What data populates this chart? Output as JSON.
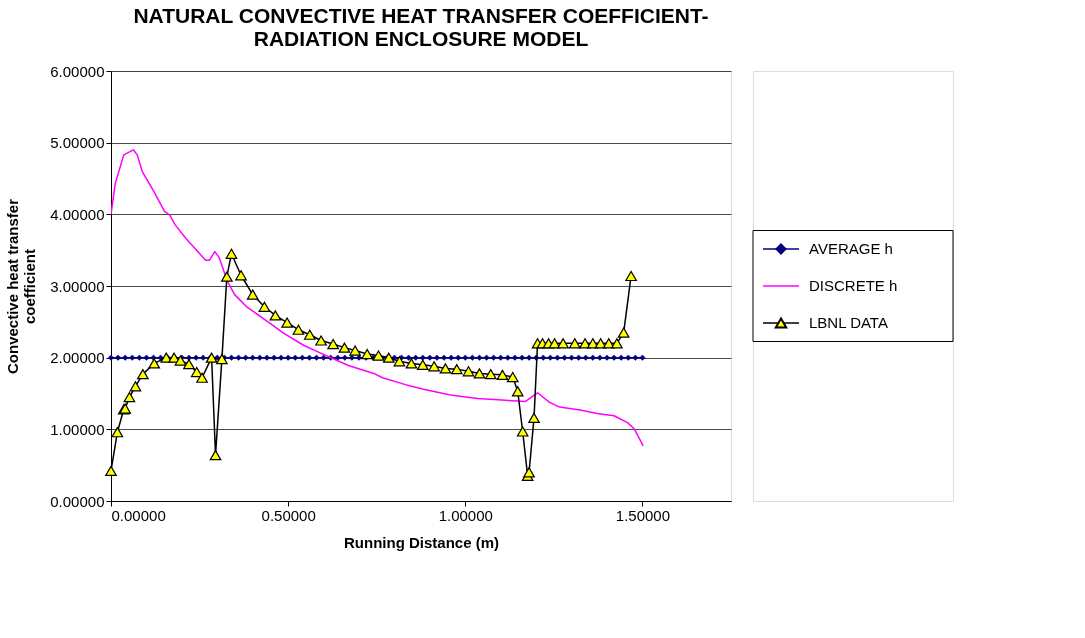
{
  "chart_data": {
    "type": "line",
    "title": "NATURAL CONVECTIVE HEAT TRANSFER COEFFICIENT-\nRADIATION ENCLOSURE MODEL",
    "xlabel": "Running Distance (m)",
    "ylabel": "Convective heat transfer coefficient",
    "xlim": [
      0,
      1.75
    ],
    "xticks": [
      {
        "value": 0,
        "label": "0.00000"
      },
      {
        "value": 0.5,
        "label": "0.50000"
      },
      {
        "value": 1,
        "label": "1.00000"
      },
      {
        "value": 1.5,
        "label": "1.50000"
      }
    ],
    "ylim": [
      0,
      6
    ],
    "yticks": [
      {
        "value": 0,
        "label": "0.00000"
      },
      {
        "value": 1,
        "label": "1.00000"
      },
      {
        "value": 2,
        "label": "2.00000"
      },
      {
        "value": 3,
        "label": "3.00000"
      },
      {
        "value": 4,
        "label": "4.00000"
      },
      {
        "value": 5,
        "label": "5.00000"
      },
      {
        "value": 6,
        "label": "6.00000"
      }
    ],
    "grid": "y",
    "legend": "right",
    "series": [
      {
        "name": "AVERAGE h",
        "color": "#000080",
        "marker": "diamond",
        "x": [
          0,
          0.02,
          0.04,
          0.06,
          0.08,
          0.1,
          0.12,
          0.14,
          0.16,
          0.18,
          0.2,
          0.22,
          0.24,
          0.26,
          0.28,
          0.3,
          0.32,
          0.34,
          0.36,
          0.38,
          0.4,
          0.42,
          0.44,
          0.46,
          0.48,
          0.5,
          0.52,
          0.54,
          0.56,
          0.58,
          0.6,
          0.62,
          0.64,
          0.66,
          0.68,
          0.7,
          0.72,
          0.74,
          0.76,
          0.78,
          0.8,
          0.82,
          0.84,
          0.86,
          0.88,
          0.9,
          0.92,
          0.94,
          0.96,
          0.98,
          1,
          1.02,
          1.04,
          1.06,
          1.08,
          1.1,
          1.12,
          1.14,
          1.16,
          1.18,
          1.2,
          1.22,
          1.24,
          1.26,
          1.28,
          1.3,
          1.32,
          1.34,
          1.36,
          1.38,
          1.4,
          1.42,
          1.44,
          1.46,
          1.48,
          1.5
        ],
        "values": [
          2,
          2,
          2,
          2,
          2,
          2,
          2,
          2,
          2,
          2,
          2,
          2,
          2,
          2,
          2,
          2,
          2,
          2,
          2,
          2,
          2,
          2,
          2,
          2,
          2,
          2,
          2,
          2,
          2,
          2,
          2,
          2,
          2,
          2,
          2,
          2,
          2,
          2,
          2,
          2,
          2,
          2,
          2,
          2,
          2,
          2,
          2,
          2,
          2,
          2,
          2,
          2,
          2,
          2,
          2,
          2,
          2,
          2,
          2,
          2,
          2,
          2,
          2,
          2,
          2,
          2,
          2,
          2,
          2,
          2,
          2,
          2,
          2,
          2,
          2,
          2
        ]
      },
      {
        "name": "DISCRETE h",
        "color": "#ff00ff",
        "marker": "none",
        "x": [
          0,
          0.012,
          0.036,
          0.063,
          0.074,
          0.088,
          0.122,
          0.151,
          0.166,
          0.18,
          0.214,
          0.267,
          0.278,
          0.293,
          0.305,
          0.329,
          0.349,
          0.383,
          0.44,
          0.488,
          0.545,
          0.584,
          0.67,
          0.728,
          0.742,
          0.766,
          0.834,
          0.882,
          0.958,
          1.035,
          1.132,
          1.17,
          1.204,
          1.237,
          1.266,
          1.324,
          1.372,
          1.42,
          1.459,
          1.478,
          1.502
        ],
        "values": [
          4.0,
          4.43,
          4.83,
          4.9,
          4.83,
          4.6,
          4.31,
          4.04,
          3.99,
          3.86,
          3.65,
          3.36,
          3.36,
          3.48,
          3.4,
          3.06,
          2.88,
          2.71,
          2.51,
          2.34,
          2.17,
          2.08,
          1.89,
          1.8,
          1.78,
          1.72,
          1.62,
          1.56,
          1.48,
          1.43,
          1.4,
          1.39,
          1.51,
          1.38,
          1.31,
          1.27,
          1.22,
          1.19,
          1.09,
          1.0,
          0.77
        ]
      },
      {
        "name": "LBNL DATA",
        "color": "#ffff00",
        "marker": "triangle",
        "x": [
          0,
          0.018,
          0.036,
          0.04,
          0.052,
          0.069,
          0.09,
          0.122,
          0.156,
          0.178,
          0.196,
          0.22,
          0.242,
          0.257,
          0.284,
          0.295,
          0.313,
          0.327,
          0.34,
          0.367,
          0.4,
          0.433,
          0.464,
          0.497,
          0.529,
          0.561,
          0.593,
          0.627,
          0.659,
          0.689,
          0.723,
          0.755,
          0.784,
          0.814,
          0.848,
          0.88,
          0.912,
          0.944,
          0.976,
          1.009,
          1.04,
          1.072,
          1.105,
          1.134,
          1.148,
          1.162,
          1.176,
          1.18,
          1.194,
          1.204,
          1.218,
          1.235,
          1.252,
          1.276,
          1.309,
          1.338,
          1.36,
          1.382,
          1.405,
          1.428,
          1.447,
          1.468
        ],
        "values": [
          0.42,
          0.96,
          1.28,
          1.29,
          1.45,
          1.6,
          1.77,
          1.92,
          2.0,
          2.0,
          1.96,
          1.91,
          1.8,
          1.72,
          2.0,
          0.64,
          1.98,
          3.13,
          3.45,
          3.15,
          2.88,
          2.71,
          2.59,
          2.49,
          2.39,
          2.32,
          2.24,
          2.19,
          2.14,
          2.1,
          2.05,
          2.03,
          2.0,
          1.95,
          1.92,
          1.9,
          1.88,
          1.85,
          1.84,
          1.81,
          1.78,
          1.77,
          1.76,
          1.73,
          1.53,
          0.97,
          0.35,
          0.4,
          1.16,
          2.2,
          2.2,
          2.2,
          2.2,
          2.2,
          2.2,
          2.2,
          2.2,
          2.2,
          2.2,
          2.2,
          2.35,
          3.14
        ]
      }
    ]
  }
}
